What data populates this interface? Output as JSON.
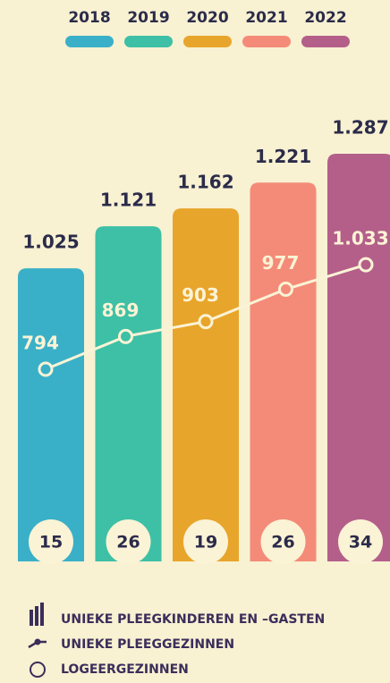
{
  "chart_data": {
    "type": "bar",
    "categories": [
      "2018",
      "2019",
      "2020",
      "2021",
      "2022"
    ],
    "colors": [
      "#3ab0c8",
      "#3dc0a6",
      "#e8a52b",
      "#f48b78",
      "#b45f8a"
    ],
    "series": [
      {
        "name": "UNIEKE PLEEGKINDEREN EN –GASTEN",
        "values": [
          1025,
          1121,
          1162,
          1221,
          1287
        ],
        "value_labels": [
          "1.025",
          "1.121",
          "1.162",
          "1.221",
          "1.287"
        ]
      },
      {
        "name": "UNIEKE PLEEGGEZINNEN",
        "color": "#fbf3d5",
        "values": [
          794,
          869,
          903,
          977,
          1033
        ],
        "value_labels": [
          "794",
          "869",
          "903",
          "977",
          "1.033"
        ]
      },
      {
        "name": "LOGEERGEZINNEN",
        "color": "#fbf3d5",
        "values": [
          15,
          26,
          19,
          26,
          34
        ]
      }
    ]
  }
}
